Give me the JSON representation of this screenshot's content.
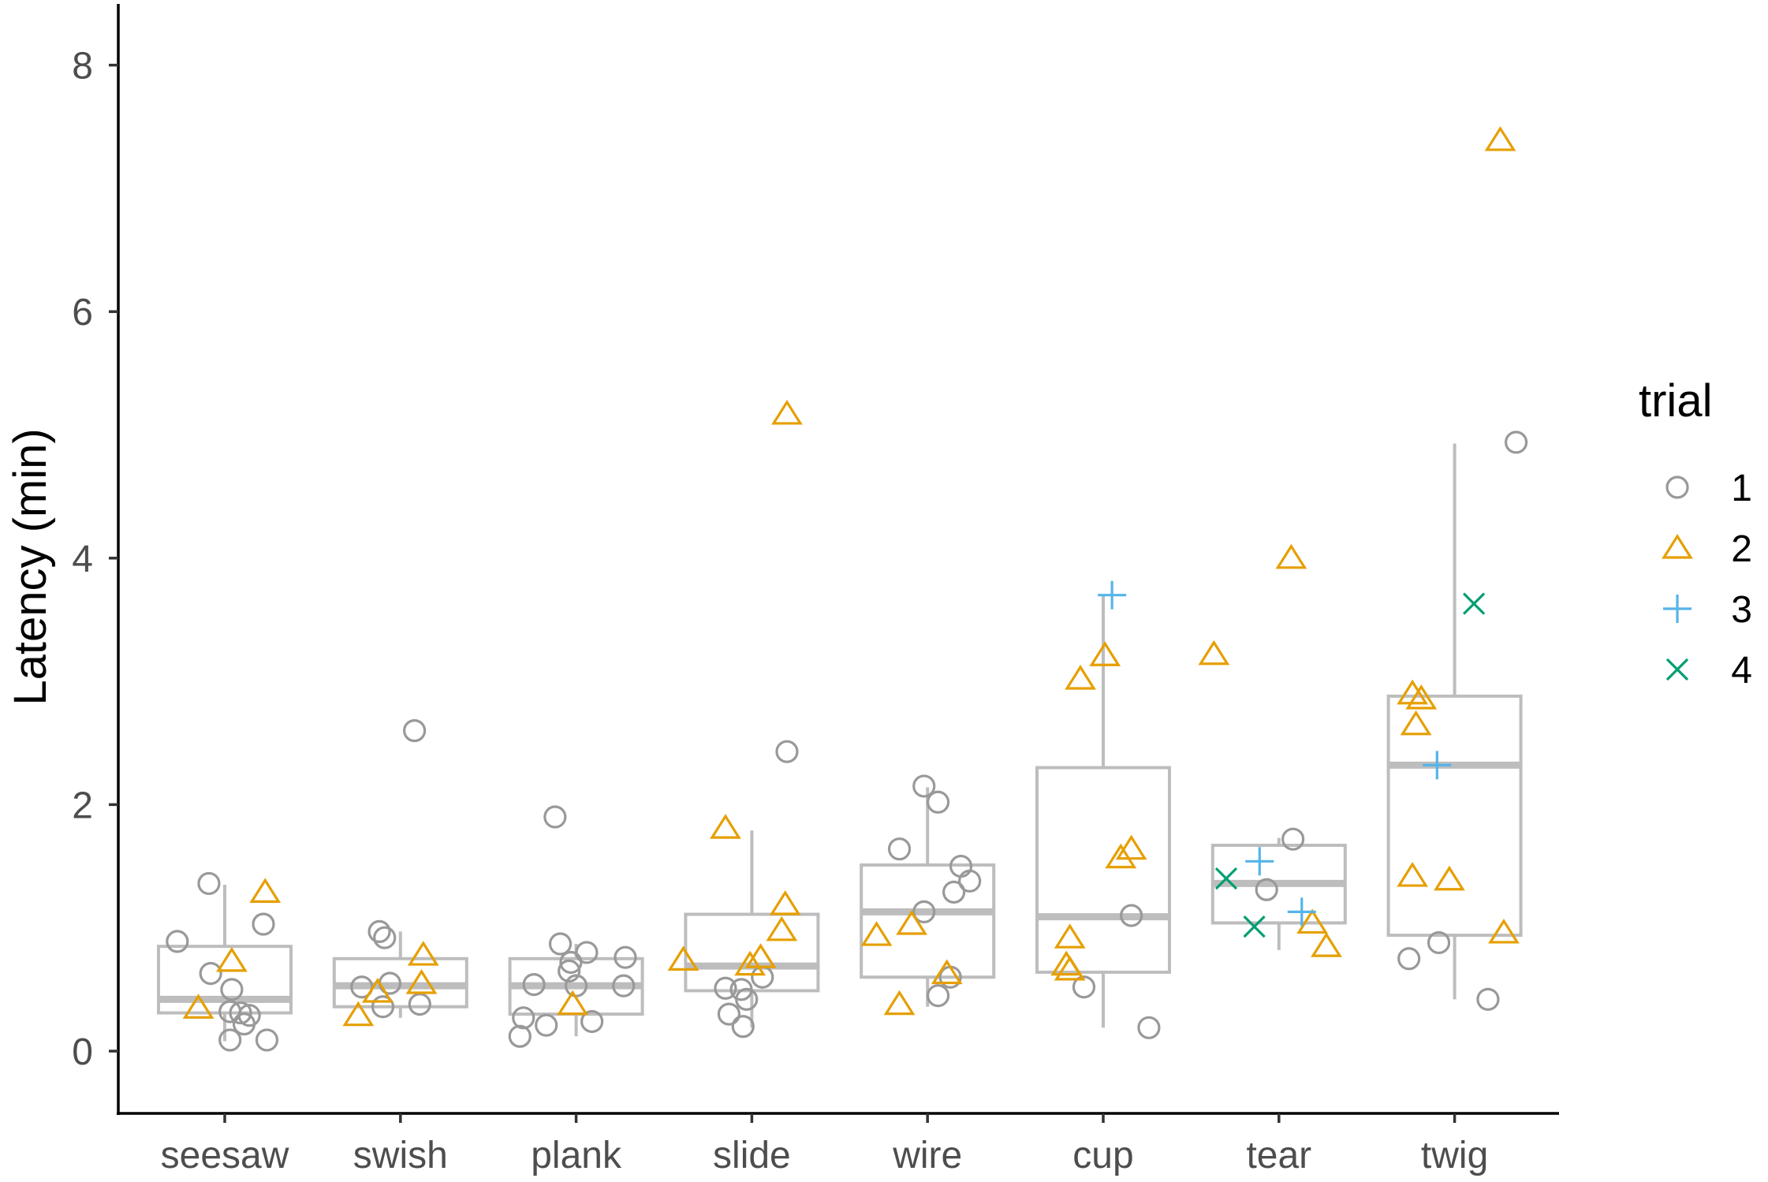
{
  "chart_data": {
    "type": "box-scatter",
    "title": "",
    "xlabel": "",
    "ylabel": "Latency (min)",
    "ylim": [
      -0.5,
      8.5
    ],
    "yticks": [
      0,
      2,
      4,
      6,
      8
    ],
    "grid": false,
    "legend_position": "right",
    "categories": [
      "seesaw",
      "swish",
      "plank",
      "slide",
      "wire",
      "cup",
      "tear",
      "twig"
    ],
    "boxes": [
      {
        "category": "seesaw",
        "q1": 0.31,
        "median": 0.42,
        "q3": 0.85,
        "whisker_low": 0.08,
        "whisker_high": 1.35
      },
      {
        "category": "swish",
        "q1": 0.36,
        "median": 0.53,
        "q3": 0.75,
        "whisker_low": 0.27,
        "whisker_high": 0.97
      },
      {
        "category": "plank",
        "q1": 0.3,
        "median": 0.53,
        "q3": 0.75,
        "whisker_low": 0.12,
        "whisker_high": 0.87
      },
      {
        "category": "slide",
        "q1": 0.49,
        "median": 0.69,
        "q3": 1.11,
        "whisker_low": 0.19,
        "whisker_high": 1.79
      },
      {
        "category": "wire",
        "q1": 0.6,
        "median": 1.13,
        "q3": 1.51,
        "whisker_low": 0.36,
        "whisker_high": 2.14
      },
      {
        "category": "cup",
        "q1": 0.64,
        "median": 1.09,
        "q3": 2.3,
        "whisker_low": 0.19,
        "whisker_high": 3.7
      },
      {
        "category": "tear",
        "q1": 1.04,
        "median": 1.36,
        "q3": 1.67,
        "whisker_low": 0.82,
        "whisker_high": 1.73
      },
      {
        "category": "twig",
        "q1": 0.94,
        "median": 2.32,
        "q3": 2.88,
        "whisker_low": 0.42,
        "whisker_high": 4.93
      }
    ],
    "legend": {
      "title": "trial",
      "entries": [
        {
          "label": "1",
          "shape": "circle",
          "color": "#999999"
        },
        {
          "label": "2",
          "shape": "triangle",
          "color": "#E69F00"
        },
        {
          "label": "3",
          "shape": "plus",
          "color": "#56B4E9"
        },
        {
          "label": "4",
          "shape": "cross",
          "color": "#009E73"
        }
      ]
    },
    "series": [
      {
        "trial": "1",
        "points": [
          {
            "x": -0.27,
            "y": 0.89
          },
          {
            "x": -0.09,
            "y": 1.36
          },
          {
            "x": -0.08,
            "y": 0.63
          },
          {
            "x": 0.04,
            "y": 0.5
          },
          {
            "x": 0.03,
            "y": 0.32
          },
          {
            "x": 0.09,
            "y": 0.31
          },
          {
            "x": 0.14,
            "y": 0.29
          },
          {
            "x": 0.11,
            "y": 0.22
          },
          {
            "x": 0.03,
            "y": 0.09
          },
          {
            "x": 0.24,
            "y": 0.09
          },
          {
            "x": 0.22,
            "y": 1.03
          },
          {
            "x": 1.08,
            "y": 2.6
          },
          {
            "x": 0.88,
            "y": 0.97
          },
          {
            "x": 0.91,
            "y": 0.92
          },
          {
            "x": 0.78,
            "y": 0.52
          },
          {
            "x": 0.94,
            "y": 0.55
          },
          {
            "x": 0.9,
            "y": 0.36
          },
          {
            "x": 1.11,
            "y": 0.38
          },
          {
            "x": 1.88,
            "y": 1.9
          },
          {
            "x": 1.91,
            "y": 0.87
          },
          {
            "x": 2.06,
            "y": 0.8
          },
          {
            "x": 1.97,
            "y": 0.72
          },
          {
            "x": 1.96,
            "y": 0.65
          },
          {
            "x": 2.28,
            "y": 0.76
          },
          {
            "x": 2.27,
            "y": 0.53
          },
          {
            "x": 2.0,
            "y": 0.53
          },
          {
            "x": 1.76,
            "y": 0.54
          },
          {
            "x": 1.7,
            "y": 0.27
          },
          {
            "x": 1.83,
            "y": 0.21
          },
          {
            "x": 2.09,
            "y": 0.24
          },
          {
            "x": 1.68,
            "y": 0.12
          },
          {
            "x": 3.2,
            "y": 2.43
          },
          {
            "x": 2.85,
            "y": 0.51
          },
          {
            "x": 2.94,
            "y": 0.5
          },
          {
            "x": 2.97,
            "y": 0.42
          },
          {
            "x": 3.06,
            "y": 0.6
          },
          {
            "x": 2.87,
            "y": 0.3
          },
          {
            "x": 2.95,
            "y": 0.2
          },
          {
            "x": 3.98,
            "y": 2.15
          },
          {
            "x": 4.06,
            "y": 2.02
          },
          {
            "x": 3.84,
            "y": 1.64
          },
          {
            "x": 4.19,
            "y": 1.5
          },
          {
            "x": 4.24,
            "y": 1.38
          },
          {
            "x": 4.15,
            "y": 1.29
          },
          {
            "x": 3.98,
            "y": 1.13
          },
          {
            "x": 4.13,
            "y": 0.6
          },
          {
            "x": 4.06,
            "y": 0.45
          },
          {
            "x": 5.16,
            "y": 1.1
          },
          {
            "x": 4.89,
            "y": 0.52
          },
          {
            "x": 5.26,
            "y": 0.19
          },
          {
            "x": 6.08,
            "y": 1.72
          },
          {
            "x": 5.93,
            "y": 1.31
          },
          {
            "x": 7.35,
            "y": 4.94
          },
          {
            "x": 6.74,
            "y": 0.75
          },
          {
            "x": 6.91,
            "y": 0.88
          },
          {
            "x": 7.19,
            "y": 0.42
          }
        ]
      },
      {
        "trial": "2",
        "points": [
          {
            "x": 0.23,
            "y": 1.29
          },
          {
            "x": 0.04,
            "y": 0.73
          },
          {
            "x": -0.15,
            "y": 0.35
          },
          {
            "x": 1.13,
            "y": 0.78
          },
          {
            "x": 0.87,
            "y": 0.48
          },
          {
            "x": 1.12,
            "y": 0.55
          },
          {
            "x": 0.76,
            "y": 0.29
          },
          {
            "x": 1.98,
            "y": 0.38
          },
          {
            "x": 3.2,
            "y": 5.17
          },
          {
            "x": 2.85,
            "y": 1.81
          },
          {
            "x": 3.19,
            "y": 1.19
          },
          {
            "x": 3.17,
            "y": 0.98
          },
          {
            "x": 3.05,
            "y": 0.76
          },
          {
            "x": 2.99,
            "y": 0.7
          },
          {
            "x": 2.61,
            "y": 0.74
          },
          {
            "x": 3.71,
            "y": 0.94
          },
          {
            "x": 3.91,
            "y": 1.03
          },
          {
            "x": 4.11,
            "y": 0.63
          },
          {
            "x": 3.84,
            "y": 0.38
          },
          {
            "x": 5.01,
            "y": 3.21
          },
          {
            "x": 4.87,
            "y": 3.02
          },
          {
            "x": 5.16,
            "y": 1.64
          },
          {
            "x": 5.1,
            "y": 1.57
          },
          {
            "x": 4.81,
            "y": 0.92
          },
          {
            "x": 4.79,
            "y": 0.7
          },
          {
            "x": 4.81,
            "y": 0.66
          },
          {
            "x": 6.07,
            "y": 4.0
          },
          {
            "x": 5.63,
            "y": 3.22
          },
          {
            "x": 6.19,
            "y": 1.04
          },
          {
            "x": 6.27,
            "y": 0.85
          },
          {
            "x": 7.26,
            "y": 7.39
          },
          {
            "x": 6.76,
            "y": 2.9
          },
          {
            "x": 6.81,
            "y": 2.86
          },
          {
            "x": 6.78,
            "y": 2.65
          },
          {
            "x": 6.76,
            "y": 1.42
          },
          {
            "x": 6.97,
            "y": 1.39
          },
          {
            "x": 7.28,
            "y": 0.96
          }
        ]
      },
      {
        "trial": "3",
        "points": [
          {
            "x": 5.05,
            "y": 3.7
          },
          {
            "x": 5.89,
            "y": 1.54
          },
          {
            "x": 6.13,
            "y": 1.13
          },
          {
            "x": 6.9,
            "y": 2.32
          }
        ]
      },
      {
        "trial": "4",
        "points": [
          {
            "x": 5.7,
            "y": 1.4
          },
          {
            "x": 5.86,
            "y": 1.01
          },
          {
            "x": 7.11,
            "y": 3.63
          }
        ]
      }
    ]
  }
}
